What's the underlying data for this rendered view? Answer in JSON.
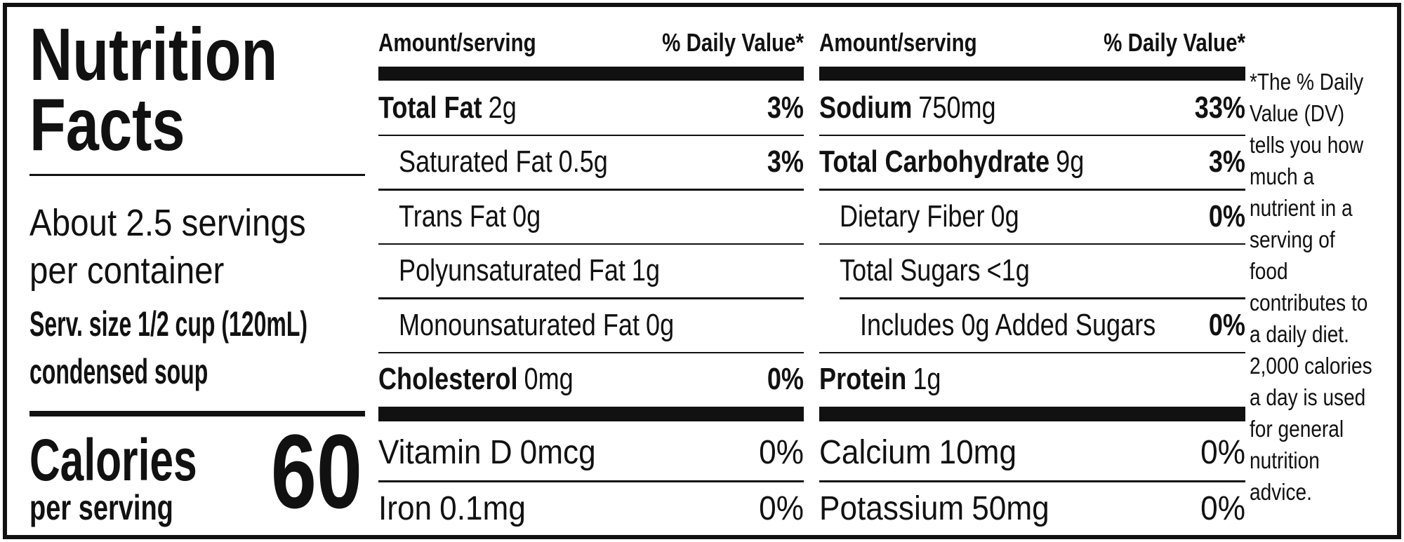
{
  "title": "Nutrition Facts",
  "servings": "About 2.5 servings per container",
  "serving_size": "Serv. size 1/2 cup (120mL) condensed soup",
  "calories": {
    "label": "Calories",
    "sublabel": "per serving",
    "value": 60
  },
  "columns": [
    {
      "header": {
        "amount": "Amount/serving",
        "dv": "% Daily Value*"
      },
      "rows": [
        {
          "name": "Total Fat",
          "amount": "2g",
          "dv": "3%",
          "sub": [
            {
              "name": "Saturated Fat",
              "amount": "0.5g",
              "dv": "3%"
            },
            {
              "name": "Trans Fat",
              "amount": "0g"
            },
            {
              "name": "Polyunsaturated Fat",
              "amount": "1g"
            },
            {
              "name": "Monounsaturated Fat",
              "amount": "0g"
            }
          ]
        },
        {
          "name": "Cholesterol",
          "amount": "0mg",
          "dv": "0%"
        }
      ],
      "vitamins": [
        {
          "name": "Vitamin D",
          "amount": "0mcg",
          "dv": "0%"
        },
        {
          "name": "Iron",
          "amount": "0.1mg",
          "dv": "0%"
        }
      ]
    },
    {
      "header": {
        "amount": "Amount/serving",
        "dv": "% Daily Value*"
      },
      "rows": [
        {
          "name": "Sodium",
          "amount": "750mg",
          "dv": "33%"
        },
        {
          "name": "Total Carbohydrate",
          "amount": "9g",
          "dv": "3%",
          "sub": [
            {
              "name": "Dietary Fiber",
              "amount": "0g",
              "dv": "0%"
            },
            {
              "name": "Total Sugars",
              "amount": "<1g",
              "sub": [
                {
                  "name": "Includes 0g Added Sugars",
                  "dv": "0%"
                }
              ]
            }
          ]
        },
        {
          "name": "Protein",
          "amount": "1g"
        }
      ],
      "vitamins": [
        {
          "name": "Calcium",
          "amount": "10mg",
          "dv": "0%"
        },
        {
          "name": "Potassium",
          "amount": "50mg",
          "dv": "0%"
        }
      ]
    }
  ],
  "footnote": "*The % Daily Value (DV) tells you how much a nutrient in a serving of food contributes to a daily diet. 2,000 calories a day is used for general nutrition advice."
}
